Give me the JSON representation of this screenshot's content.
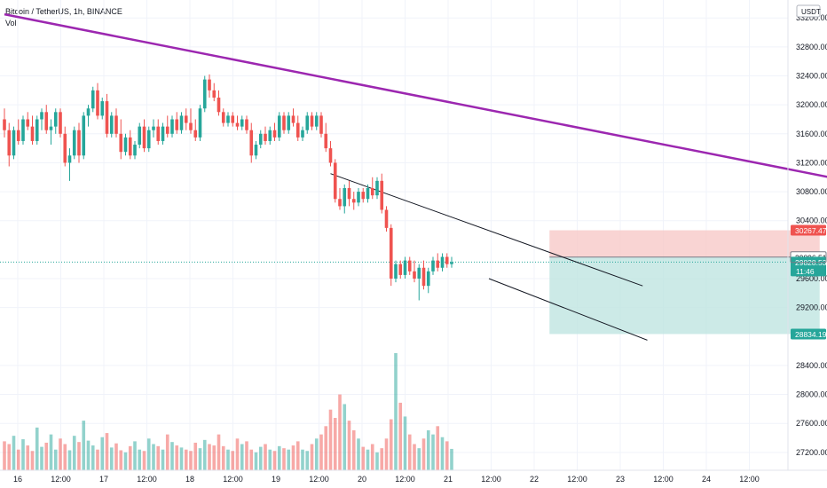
{
  "header": {
    "symbol": "Bitcoin / TetherUS, 1h, BINANCE",
    "volume_label": "Vol"
  },
  "price_axis": {
    "currency": "USDT",
    "ticks": [
      "33200.00",
      "32800.00",
      "32400.00",
      "32000.00",
      "31600.00",
      "31200.00",
      "30800.00",
      "30400.00",
      "29600.00",
      "29200.00",
      "28400.00",
      "28000.00",
      "27600.00",
      "27200.00"
    ]
  },
  "time_axis": {
    "labels": [
      "16",
      "12:00",
      "17",
      "12:00",
      "18",
      "12:00",
      "19",
      "12:00",
      "20",
      "12:00",
      "21",
      "12:00",
      "22",
      "12:00",
      "23",
      "12:00",
      "24",
      "12:00"
    ]
  },
  "price_badges": {
    "stop": "30267.47",
    "entry": "29896.51",
    "last": "29828.53",
    "countdown": "11:46",
    "target": "28834.19"
  },
  "colors": {
    "up": "#26a69a",
    "down": "#ef5350",
    "trendline": "#9c27b0",
    "stop_zone": "#f7c9c8",
    "target_zone": "#bfe5e1"
  },
  "chart_data": {
    "type": "candlestick",
    "price_range": [
      26800,
      33350
    ],
    "candles": [
      [
        31800,
        31950,
        31550,
        31650
      ],
      [
        31650,
        31750,
        31150,
        31300
      ],
      [
        31300,
        31700,
        31250,
        31650
      ],
      [
        31650,
        31800,
        31450,
        31500
      ],
      [
        31500,
        31850,
        31450,
        31800
      ],
      [
        31800,
        31900,
        31650,
        31700
      ],
      [
        31700,
        31850,
        31450,
        31500
      ],
      [
        31500,
        31850,
        31450,
        31800
      ],
      [
        31800,
        31950,
        31650,
        31900
      ],
      [
        31900,
        32000,
        31600,
        31650
      ],
      [
        31650,
        31800,
        31450,
        31700
      ],
      [
        31700,
        31950,
        31600,
        31900
      ],
      [
        31900,
        31950,
        31550,
        31600
      ],
      [
        31600,
        31700,
        31150,
        31200
      ],
      [
        31200,
        31400,
        30950,
        31300
      ],
      [
        31300,
        31700,
        31250,
        31650
      ],
      [
        31650,
        31750,
        31200,
        31300
      ],
      [
        31300,
        31900,
        31250,
        31850
      ],
      [
        31850,
        32000,
        31700,
        31950
      ],
      [
        31950,
        32250,
        31900,
        32200
      ],
      [
        32200,
        32300,
        31800,
        31850
      ],
      [
        31850,
        32100,
        31800,
        32050
      ],
      [
        32050,
        32150,
        31550,
        31600
      ],
      [
        31600,
        31900,
        31550,
        31850
      ],
      [
        31850,
        31950,
        31550,
        31600
      ],
      [
        31600,
        31800,
        31250,
        31350
      ],
      [
        31350,
        31600,
        31300,
        31550
      ],
      [
        31550,
        31650,
        31250,
        31300
      ],
      [
        31300,
        31500,
        31250,
        31450
      ],
      [
        31450,
        31750,
        31400,
        31700
      ],
      [
        31700,
        31800,
        31350,
        31400
      ],
      [
        31400,
        31700,
        31350,
        31650
      ],
      [
        31650,
        31800,
        31550,
        31700
      ],
      [
        31700,
        31800,
        31450,
        31500
      ],
      [
        31500,
        31750,
        31450,
        31700
      ],
      [
        31700,
        31850,
        31550,
        31600
      ],
      [
        31600,
        31850,
        31550,
        31800
      ],
      [
        31800,
        31900,
        31600,
        31650
      ],
      [
        31650,
        31900,
        31600,
        31850
      ],
      [
        31850,
        31950,
        31650,
        31750
      ],
      [
        31750,
        31950,
        31600,
        31650
      ],
      [
        31650,
        31800,
        31500,
        31550
      ],
      [
        31550,
        32000,
        31500,
        31950
      ],
      [
        31950,
        32400,
        31900,
        32350
      ],
      [
        32350,
        32420,
        32100,
        32200
      ],
      [
        32200,
        32300,
        32050,
        32100
      ],
      [
        32100,
        32200,
        31850,
        31900
      ],
      [
        31900,
        31950,
        31700,
        31750
      ],
      [
        31750,
        31900,
        31700,
        31850
      ],
      [
        31850,
        31900,
        31700,
        31750
      ],
      [
        31750,
        31850,
        31650,
        31700
      ],
      [
        31700,
        31850,
        31650,
        31800
      ],
      [
        31800,
        31850,
        31600,
        31650
      ],
      [
        31650,
        31750,
        31200,
        31300
      ],
      [
        31300,
        31500,
        31250,
        31450
      ],
      [
        31450,
        31650,
        31400,
        31600
      ],
      [
        31600,
        31700,
        31450,
        31500
      ],
      [
        31500,
        31700,
        31450,
        31650
      ],
      [
        31650,
        31750,
        31500,
        31550
      ],
      [
        31550,
        31900,
        31500,
        31850
      ],
      [
        31850,
        31900,
        31600,
        31650
      ],
      [
        31650,
        31900,
        31600,
        31850
      ],
      [
        31850,
        31950,
        31700,
        31750
      ],
      [
        31750,
        31850,
        31500,
        31550
      ],
      [
        31550,
        31700,
        31500,
        31650
      ],
      [
        31650,
        31900,
        31600,
        31850
      ],
      [
        31850,
        31900,
        31650,
        31700
      ],
      [
        31700,
        31900,
        31650,
        31850
      ],
      [
        31850,
        31900,
        31550,
        31600
      ],
      [
        31600,
        31750,
        31350,
        31400
      ],
      [
        31400,
        31500,
        31150,
        31200
      ],
      [
        31200,
        31250,
        30650,
        30700
      ],
      [
        30700,
        30850,
        30550,
        30600
      ],
      [
        30600,
        30900,
        30500,
        30850
      ],
      [
        30850,
        30950,
        30600,
        30700
      ],
      [
        30700,
        30800,
        30550,
        30650
      ],
      [
        30650,
        30850,
        30600,
        30800
      ],
      [
        30800,
        30850,
        30650,
        30700
      ],
      [
        30700,
        30900,
        30650,
        30850
      ],
      [
        30850,
        31000,
        30700,
        30750
      ],
      [
        30750,
        31000,
        30700,
        30950
      ],
      [
        30950,
        31050,
        30500,
        30550
      ],
      [
        30550,
        30600,
        30250,
        30300
      ],
      [
        30300,
        30350,
        29500,
        29600
      ],
      [
        29600,
        29850,
        29550,
        29800
      ],
      [
        29800,
        29850,
        29600,
        29650
      ],
      [
        29650,
        29900,
        29600,
        29850
      ],
      [
        29850,
        29900,
        29650,
        29700
      ],
      [
        29700,
        29850,
        29550,
        29600
      ],
      [
        29600,
        29800,
        29300,
        29750
      ],
      [
        29750,
        29850,
        29450,
        29500
      ],
      [
        29500,
        29750,
        29400,
        29700
      ],
      [
        29700,
        29900,
        29650,
        29850
      ],
      [
        29850,
        29950,
        29700,
        29750
      ],
      [
        29750,
        29950,
        29700,
        29900
      ],
      [
        29900,
        29950,
        29750,
        29800
      ],
      [
        29800,
        29900,
        29750,
        29828.53
      ]
    ],
    "volumes": [
      420,
      380,
      500,
      300,
      450,
      360,
      280,
      620,
      340,
      400,
      520,
      300,
      460,
      380,
      290,
      500,
      410,
      720,
      430,
      360,
      300,
      480,
      540,
      330,
      390,
      290,
      260,
      350,
      420,
      300,
      280,
      460,
      380,
      350,
      300,
      520,
      410,
      360,
      330,
      300,
      280,
      400,
      320,
      440,
      380,
      360,
      520,
      350,
      300,
      280,
      460,
      380,
      420,
      300,
      260,
      340,
      380,
      300,
      280,
      350,
      320,
      300,
      360,
      420,
      300,
      280,
      380,
      460,
      520,
      640,
      880,
      760,
      1100,
      960,
      720,
      580,
      460,
      340,
      300,
      380,
      260,
      320,
      460,
      740,
      1700,
      980,
      780,
      520,
      380,
      320,
      460,
      580,
      520,
      640,
      480,
      420,
      310
    ],
    "volume_max": 1700,
    "trendline": [
      {
        "t": 0,
        "price": 33250
      },
      {
        "t": 218,
        "price": 30480
      }
    ],
    "channel_upper": [
      {
        "t": 70,
        "price": 31050
      },
      {
        "t": 137,
        "price": 29500
      }
    ],
    "channel_lower": [
      {
        "t": 104,
        "price": 29600
      },
      {
        "t": 138,
        "price": 28750
      }
    ],
    "position": {
      "t_start": 117,
      "t_end": 175,
      "entry": 29896.51,
      "stop": 30267.47,
      "target": 28834.19
    }
  }
}
